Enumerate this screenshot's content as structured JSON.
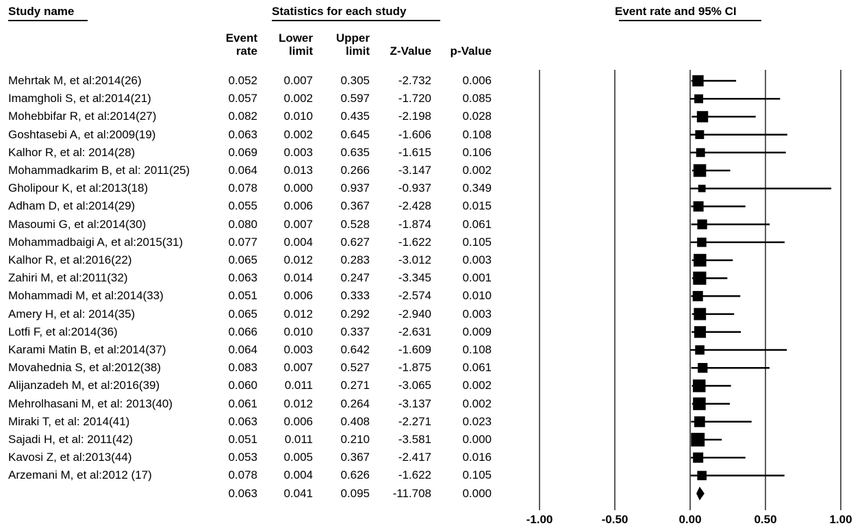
{
  "headers": {
    "study_name": "Study name",
    "statistics": "Statistics for each study",
    "plot": "Event rate and 95% CI"
  },
  "columns": {
    "event_rate": [
      "Event",
      "rate"
    ],
    "lower_limit": [
      "Lower",
      "limit"
    ],
    "upper_limit": [
      "Upper",
      "limit"
    ],
    "z_value": "Z-Value",
    "p_value": "p-Value"
  },
  "chart_data": {
    "type": "forest",
    "xlim": [
      -1.0,
      1.0
    ],
    "xticks": [
      -1.0,
      -0.5,
      0.0,
      0.5,
      1.0
    ],
    "xtick_labels": [
      "-1.00",
      "-0.50",
      "0.00",
      "0.50",
      "1.00"
    ],
    "studies": [
      {
        "name": "Mehrtak M, et al:2014(26)",
        "rate": "0.052",
        "lower": "0.007",
        "upper": "0.305",
        "z": "-2.732",
        "p": "0.006",
        "weight": 0.6
      },
      {
        "name": "Imamgholi S, et al:2014(21)",
        "rate": "0.057",
        "lower": "0.002",
        "upper": "0.597",
        "z": "-1.720",
        "p": "0.085",
        "weight": 0.35
      },
      {
        "name": "Mohebbifar R, et al:2014(27)",
        "rate": "0.082",
        "lower": "0.010",
        "upper": "0.435",
        "z": "-2.198",
        "p": "0.028",
        "weight": 0.6
      },
      {
        "name": "Goshtasebi A, et al:2009(19)",
        "rate": "0.063",
        "lower": "0.002",
        "upper": "0.645",
        "z": "-1.606",
        "p": "0.108",
        "weight": 0.35
      },
      {
        "name": "Kalhor R, et al: 2014(28)",
        "rate": "0.069",
        "lower": "0.003",
        "upper": "0.635",
        "z": "-1.615",
        "p": "0.106",
        "weight": 0.35
      },
      {
        "name": "Mohammadkarim B, et al: 2011(25)",
        "rate": "0.064",
        "lower": "0.013",
        "upper": "0.266",
        "z": "-3.147",
        "p": "0.002",
        "weight": 0.75
      },
      {
        "name": "Gholipour K, et al:2013(18)",
        "rate": "0.078",
        "lower": "0.000",
        "upper": "0.937",
        "z": "-0.937",
        "p": "0.349",
        "weight": 0.2
      },
      {
        "name": "Adham D, et al:2014(29)",
        "rate": "0.055",
        "lower": "0.006",
        "upper": "0.367",
        "z": "-2.428",
        "p": "0.015",
        "weight": 0.5
      },
      {
        "name": "Masoumi G, et al:2014(30)",
        "rate": "0.080",
        "lower": "0.007",
        "upper": "0.528",
        "z": "-1.874",
        "p": "0.061",
        "weight": 0.45
      },
      {
        "name": "Mohammadbaigi A, et al:2015(31)",
        "rate": "0.077",
        "lower": "0.004",
        "upper": "0.627",
        "z": "-1.622",
        "p": "0.105",
        "weight": 0.4
      },
      {
        "name": "Kalhor R, et al:2016(22)",
        "rate": "0.065",
        "lower": "0.012",
        "upper": "0.283",
        "z": "-3.012",
        "p": "0.003",
        "weight": 0.75
      },
      {
        "name": "Zahiri M, et al:2011(32)",
        "rate": "0.063",
        "lower": "0.014",
        "upper": "0.247",
        "z": "-3.345",
        "p": "0.001",
        "weight": 0.8
      },
      {
        "name": "Mohammadi M, et al:2014(33)",
        "rate": "0.051",
        "lower": "0.006",
        "upper": "0.333",
        "z": "-2.574",
        "p": "0.010",
        "weight": 0.5
      },
      {
        "name": "Amery H, et al: 2014(35)",
        "rate": "0.065",
        "lower": "0.012",
        "upper": "0.292",
        "z": "-2.940",
        "p": "0.003",
        "weight": 0.7
      },
      {
        "name": "Lotfi F, et al:2014(36)",
        "rate": "0.066",
        "lower": "0.010",
        "upper": "0.337",
        "z": "-2.631",
        "p": "0.009",
        "weight": 0.65
      },
      {
        "name": "Karami Matin B, et al:2014(37)",
        "rate": "0.064",
        "lower": "0.003",
        "upper": "0.642",
        "z": "-1.609",
        "p": "0.108",
        "weight": 0.4
      },
      {
        "name": "Movahednia S, et al:2012(38)",
        "rate": "0.083",
        "lower": "0.007",
        "upper": "0.527",
        "z": "-1.875",
        "p": "0.061",
        "weight": 0.45
      },
      {
        "name": "Alijanzadeh M, et al:2016(39)",
        "rate": "0.060",
        "lower": "0.011",
        "upper": "0.271",
        "z": "-3.065",
        "p": "0.002",
        "weight": 0.75
      },
      {
        "name": "Mehrolhasani M, et al: 2013(40)",
        "rate": "0.061",
        "lower": "0.012",
        "upper": "0.264",
        "z": "-3.137",
        "p": "0.002",
        "weight": 0.75
      },
      {
        "name": "Miraki T, et al: 2014(41)",
        "rate": "0.063",
        "lower": "0.006",
        "upper": "0.408",
        "z": "-2.271",
        "p": "0.023",
        "weight": 0.55
      },
      {
        "name": "Sajadi H, et al: 2011(42)",
        "rate": "0.051",
        "lower": "0.011",
        "upper": "0.210",
        "z": "-3.581",
        "p": "0.000",
        "weight": 0.85
      },
      {
        "name": "Kavosi Z, et al:2013(44)",
        "rate": "0.053",
        "lower": "0.005",
        "upper": "0.367",
        "z": "-2.417",
        "p": "0.016",
        "weight": 0.5
      },
      {
        "name": "Arzemani M, et al:2012 (17)",
        "rate": "0.078",
        "lower": "0.004",
        "upper": "0.626",
        "z": "-1.622",
        "p": "0.105",
        "weight": 0.4
      }
    ],
    "summary": {
      "rate": "0.063",
      "lower": "0.041",
      "upper": "0.095",
      "z": "-11.708",
      "p": "0.000"
    }
  }
}
